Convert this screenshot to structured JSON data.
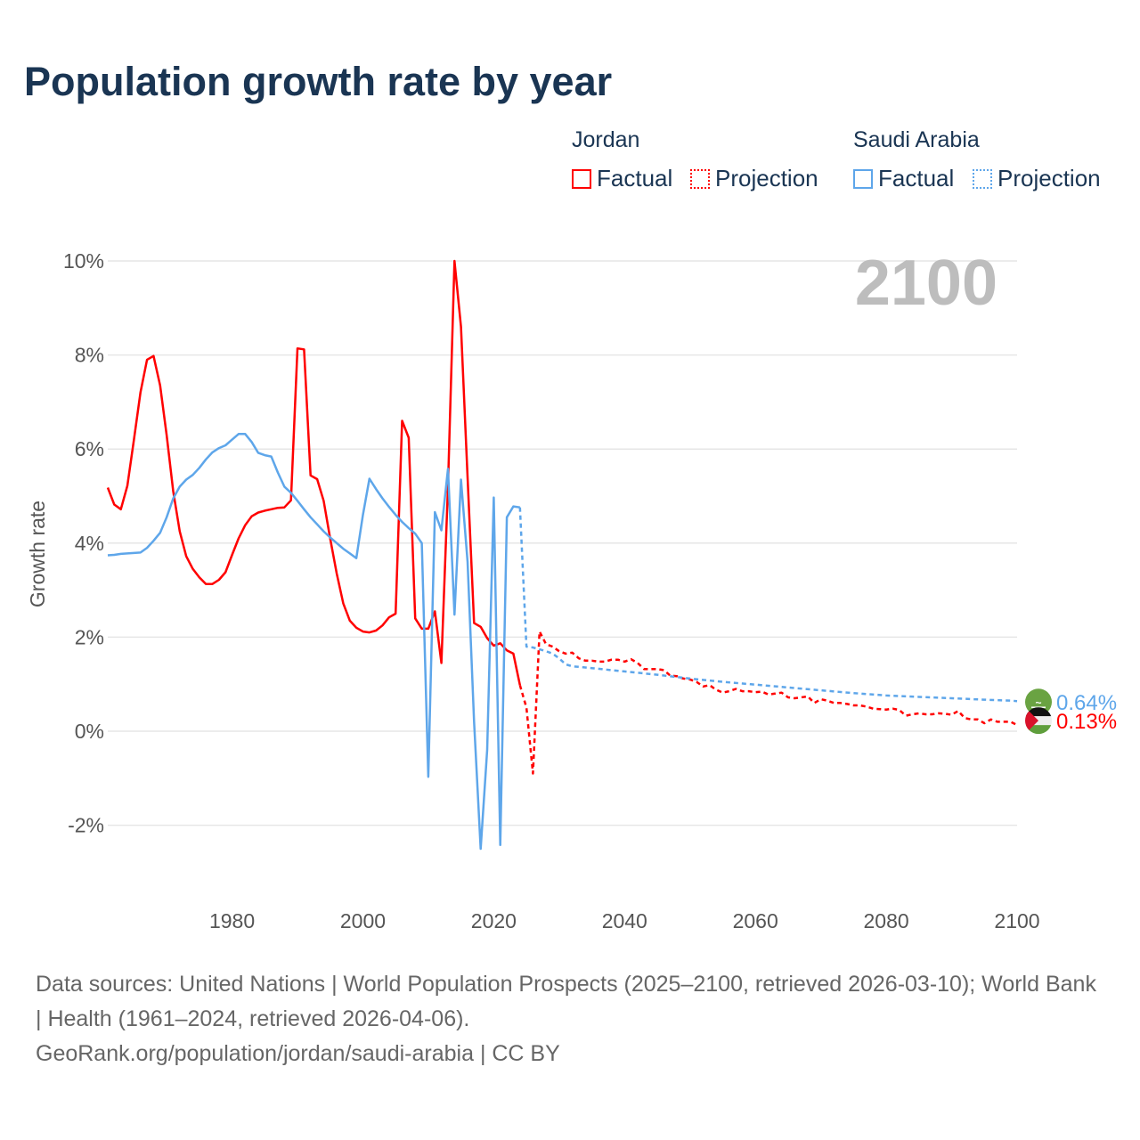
{
  "chart_data": {
    "type": "line",
    "title": "Population growth rate by year",
    "ylabel": "Growth rate",
    "xlabel": "",
    "xlim": [
      1961,
      2100
    ],
    "ylim": [
      -3,
      10.5
    ],
    "yticks": [
      -2,
      0,
      2,
      4,
      6,
      8,
      10
    ],
    "ytick_labels": [
      "-2%",
      "0%",
      "2%",
      "4%",
      "6%",
      "8%",
      "10%"
    ],
    "xticks": [
      1980,
      2000,
      2020,
      2040,
      2060,
      2080,
      2100
    ],
    "xtick_labels": [
      "1980",
      "2000",
      "2020",
      "2040",
      "2060",
      "2080",
      "2100"
    ],
    "grid": true,
    "year_display": "2100",
    "legend": {
      "groups": [
        {
          "country": "Jordan",
          "factual": "Factual",
          "projection": "Projection"
        },
        {
          "country": "Saudi Arabia",
          "factual": "Factual",
          "projection": "Projection"
        }
      ],
      "placement": "top-right"
    },
    "series": [
      {
        "name": "Jordan",
        "kind": "Factual",
        "color": "#ff0000",
        "x": [
          1961,
          1962,
          1963,
          1964,
          1965,
          1966,
          1967,
          1968,
          1969,
          1970,
          1971,
          1972,
          1973,
          1974,
          1975,
          1976,
          1977,
          1978,
          1979,
          1980,
          1981,
          1982,
          1983,
          1984,
          1985,
          1986,
          1987,
          1988,
          1989,
          1990,
          1991,
          1992,
          1993,
          1994,
          1995,
          1996,
          1997,
          1998,
          1999,
          2000,
          2001,
          2002,
          2003,
          2004,
          2005,
          2006,
          2007,
          2008,
          2009,
          2010,
          2011,
          2012,
          2013,
          2014,
          2015,
          2016,
          2017,
          2018,
          2019,
          2020,
          2021,
          2022,
          2023,
          2024
        ],
        "y": [
          5.18,
          4.82,
          4.72,
          5.22,
          6.2,
          7.2,
          7.9,
          7.98,
          7.35,
          6.3,
          5.1,
          4.25,
          3.72,
          3.45,
          3.27,
          3.13,
          3.13,
          3.22,
          3.38,
          3.75,
          4.1,
          4.38,
          4.57,
          4.65,
          4.69,
          4.72,
          4.75,
          4.76,
          4.91,
          8.14,
          8.12,
          5.44,
          5.36,
          4.9,
          4.1,
          3.35,
          2.72,
          2.35,
          2.2,
          2.12,
          2.1,
          2.14,
          2.25,
          2.42,
          2.5,
          6.6,
          6.24,
          2.4,
          2.18,
          2.18,
          2.55,
          1.45,
          5.2,
          10.0,
          8.6,
          5.4,
          2.3,
          2.22,
          1.98,
          1.82,
          1.87,
          1.72,
          1.65,
          0.98
        ]
      },
      {
        "name": "Jordan",
        "kind": "Projection",
        "color": "#ff0000",
        "x": [
          2024,
          2025,
          2026,
          2027,
          2028,
          2029,
          2030,
          2031,
          2032,
          2033,
          2034,
          2035,
          2036,
          2037,
          2038,
          2039,
          2040,
          2041,
          2042,
          2043,
          2044,
          2045,
          2046,
          2047,
          2048,
          2049,
          2050,
          2051,
          2052,
          2053,
          2054,
          2055,
          2056,
          2057,
          2058,
          2059,
          2060,
          2061,
          2062,
          2063,
          2064,
          2065,
          2066,
          2067,
          2068,
          2069,
          2070,
          2071,
          2072,
          2073,
          2074,
          2075,
          2076,
          2077,
          2078,
          2079,
          2080,
          2081,
          2082,
          2083,
          2084,
          2085,
          2086,
          2087,
          2088,
          2089,
          2090,
          2091,
          2092,
          2093,
          2094,
          2095,
          2096,
          2097,
          2098,
          2099,
          2100
        ],
        "y": [
          0.98,
          0.5,
          -0.9,
          2.12,
          1.85,
          1.8,
          1.7,
          1.65,
          1.67,
          1.55,
          1.5,
          1.5,
          1.48,
          1.48,
          1.52,
          1.52,
          1.48,
          1.53,
          1.45,
          1.32,
          1.32,
          1.32,
          1.3,
          1.18,
          1.17,
          1.12,
          1.1,
          1.05,
          0.95,
          0.98,
          0.88,
          0.82,
          0.85,
          0.9,
          0.85,
          0.85,
          0.83,
          0.84,
          0.78,
          0.8,
          0.82,
          0.72,
          0.7,
          0.72,
          0.74,
          0.6,
          0.68,
          0.65,
          0.6,
          0.6,
          0.58,
          0.55,
          0.55,
          0.52,
          0.48,
          0.47,
          0.46,
          0.48,
          0.45,
          0.33,
          0.36,
          0.38,
          0.36,
          0.36,
          0.38,
          0.37,
          0.35,
          0.43,
          0.28,
          0.25,
          0.25,
          0.17,
          0.25,
          0.2,
          0.2,
          0.2,
          0.13
        ]
      },
      {
        "name": "Saudi Arabia",
        "kind": "Factual",
        "color": "#5ea6ea",
        "x": [
          1961,
          1962,
          1963,
          1964,
          1965,
          1966,
          1967,
          1968,
          1969,
          1970,
          1971,
          1972,
          1973,
          1974,
          1975,
          1976,
          1977,
          1978,
          1979,
          1980,
          1981,
          1982,
          1983,
          1984,
          1985,
          1986,
          1987,
          1988,
          1989,
          1990,
          1991,
          1992,
          1993,
          1994,
          1995,
          1996,
          1997,
          1998,
          1999,
          2000,
          2001,
          2002,
          2003,
          2004,
          2005,
          2006,
          2007,
          2008,
          2009,
          2010,
          2011,
          2012,
          2013,
          2014,
          2015,
          2016,
          2017,
          2018,
          2019,
          2020,
          2021,
          2022,
          2023,
          2024
        ],
        "y": [
          3.74,
          3.75,
          3.77,
          3.78,
          3.79,
          3.8,
          3.9,
          4.05,
          4.22,
          4.55,
          4.95,
          5.2,
          5.35,
          5.45,
          5.6,
          5.78,
          5.93,
          6.02,
          6.08,
          6.2,
          6.32,
          6.32,
          6.15,
          5.92,
          5.87,
          5.84,
          5.5,
          5.2,
          5.07,
          4.9,
          4.72,
          4.55,
          4.4,
          4.25,
          4.12,
          4.0,
          3.88,
          3.78,
          3.68,
          4.6,
          5.37,
          5.15,
          4.95,
          4.77,
          4.6,
          4.45,
          4.32,
          4.2,
          4.0,
          -0.97,
          4.66,
          4.27,
          5.58,
          2.48,
          5.35,
          3.6,
          0.2,
          -2.5,
          -0.4,
          4.97,
          -2.42,
          4.55,
          4.78,
          4.76
        ]
      },
      {
        "name": "Saudi Arabia",
        "kind": "Projection",
        "color": "#5ea6ea",
        "x": [
          2024,
          2025,
          2026,
          2027,
          2028,
          2029,
          2030,
          2031,
          2032,
          2035,
          2040,
          2045,
          2050,
          2055,
          2060,
          2065,
          2070,
          2075,
          2080,
          2085,
          2090,
          2095,
          2099,
          2100
        ],
        "y": [
          4.76,
          1.8,
          1.78,
          1.74,
          1.7,
          1.65,
          1.55,
          1.42,
          1.38,
          1.34,
          1.27,
          1.2,
          1.12,
          1.05,
          0.99,
          0.93,
          0.87,
          0.81,
          0.76,
          0.73,
          0.7,
          0.67,
          0.65,
          0.64
        ]
      }
    ],
    "end_labels": [
      {
        "series": "Saudi Arabia",
        "value_label": "0.64%",
        "flag": "saudi-arabia-flag"
      },
      {
        "series": "Jordan",
        "value_label": "0.13%",
        "flag": "jordan-flag"
      }
    ]
  },
  "footer": {
    "sources": "Data sources: United Nations | World Population Prospects (2025–2100, retrieved 2026-03-10); World Bank | Health (1961–2024, retrieved 2026-04-06).",
    "link": "GeoRank.org/population/jordan/saudi-arabia | CC BY"
  }
}
